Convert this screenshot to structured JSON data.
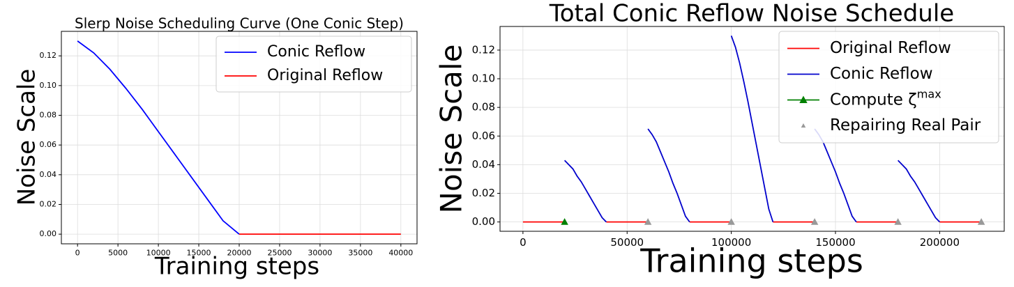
{
  "chart_data": [
    {
      "type": "line",
      "title": "Slerp Noise Scheduling Curve (One Conic Step)",
      "xlabel": "Training steps",
      "ylabel": "Noise Scale",
      "series": [
        {
          "name": "Conic Reflow",
          "color": "#0000ff",
          "x": [
            0,
            2000,
            4000,
            6000,
            8000,
            10000,
            12000,
            14000,
            16000,
            18000,
            20000
          ],
          "values": [
            0.13,
            0.122,
            0.111,
            0.098,
            0.084,
            0.069,
            0.054,
            0.039,
            0.024,
            0.009,
            0
          ]
        },
        {
          "name": "Original Reflow",
          "color": "#ff0000",
          "x": [
            20000,
            40000
          ],
          "values": [
            0,
            0
          ]
        }
      ],
      "xlim": [
        -2000,
        42000
      ],
      "xticks": [
        0,
        5000,
        10000,
        15000,
        20000,
        25000,
        30000,
        35000,
        40000
      ],
      "ylim": [
        -0.0065,
        0.1365
      ],
      "yticks": [
        {
          "value": 0,
          "label": "0.00"
        },
        {
          "value": 0.02,
          "label": "0.02"
        },
        {
          "value": 0.04,
          "label": "0.04"
        },
        {
          "value": 0.06,
          "label": "0.06"
        },
        {
          "value": 0.08,
          "label": "0.08"
        },
        {
          "value": 0.1,
          "label": "0.10"
        },
        {
          "value": 0.12,
          "label": "0.12"
        }
      ],
      "grid": true,
      "legend": "upper right"
    },
    {
      "type": "line",
      "title": "Total Conic Reflow Noise Schedule",
      "xlabel": "Training steps",
      "ylabel": "Noise Scale",
      "series": [
        {
          "name": "Original Reflow",
          "color": "#ff0000",
          "x": [
            0,
            20000,
            30000,
            40000,
            60000,
            70000,
            80000,
            100000,
            110000,
            120000,
            140000,
            150000,
            160000,
            180000,
            190000,
            200000,
            220000
          ],
          "values": [
            0,
            0,
            null,
            0,
            0,
            null,
            0,
            0,
            null,
            0,
            0,
            null,
            0,
            0,
            null,
            0,
            0
          ]
        },
        {
          "name": "Conic Reflow",
          "color": "#0000cc",
          "x": [
            20000,
            22000,
            24000,
            26000,
            28000,
            30000,
            32000,
            34000,
            36000,
            38000,
            40000,
            50000,
            60000,
            62000,
            64000,
            66000,
            68000,
            70000,
            72000,
            74000,
            76000,
            78000,
            80000,
            90000,
            100000,
            102000,
            104000,
            106000,
            108000,
            110000,
            112000,
            114000,
            116000,
            118000,
            120000,
            130000,
            140000,
            142000,
            144000,
            146000,
            148000,
            150000,
            152000,
            154000,
            156000,
            158000,
            160000,
            170000,
            180000,
            182000,
            184000,
            186000,
            188000,
            190000,
            192000,
            194000,
            196000,
            198000,
            200000
          ],
          "values": [
            0.043,
            0.04,
            0.037,
            0.032,
            0.028,
            0.023,
            0.018,
            0.013,
            0.008,
            0.003,
            0,
            null,
            0.065,
            0.061,
            0.056,
            0.049,
            0.042,
            0.035,
            0.027,
            0.02,
            0.012,
            0.004,
            0,
            null,
            0.13,
            0.122,
            0.111,
            0.098,
            0.084,
            0.069,
            0.054,
            0.039,
            0.024,
            0.009,
            0,
            null,
            0.065,
            0.061,
            0.056,
            0.049,
            0.042,
            0.035,
            0.027,
            0.02,
            0.012,
            0.004,
            0,
            null,
            0.043,
            0.04,
            0.037,
            0.032,
            0.028,
            0.023,
            0.018,
            0.013,
            0.008,
            0.003,
            0
          ]
        },
        {
          "name": "Compute ζ^max",
          "color": "#008000",
          "marker": "^",
          "x": [
            20000
          ],
          "values": [
            0
          ]
        },
        {
          "name": "Repairing Real Pair",
          "color": "#999999",
          "marker": "^",
          "linestyle": "none",
          "x": [
            60000,
            100000,
            140000,
            180000,
            220000
          ],
          "values": [
            0,
            0,
            0,
            0,
            0
          ]
        }
      ],
      "xlim": [
        -11000,
        231000
      ],
      "xticks": [
        0,
        50000,
        100000,
        150000,
        200000
      ],
      "ylim": [
        -0.0065,
        0.1365
      ],
      "yticks": [
        {
          "value": 0,
          "label": "0.00"
        },
        {
          "value": 0.02,
          "label": "0.02"
        },
        {
          "value": 0.04,
          "label": "0.04"
        },
        {
          "value": 0.06,
          "label": "0.06"
        },
        {
          "value": 0.08,
          "label": "0.08"
        },
        {
          "value": 0.1,
          "label": "0.10"
        },
        {
          "value": 0.12,
          "label": "0.12"
        }
      ],
      "grid": true,
      "legend": "upper right"
    }
  ]
}
